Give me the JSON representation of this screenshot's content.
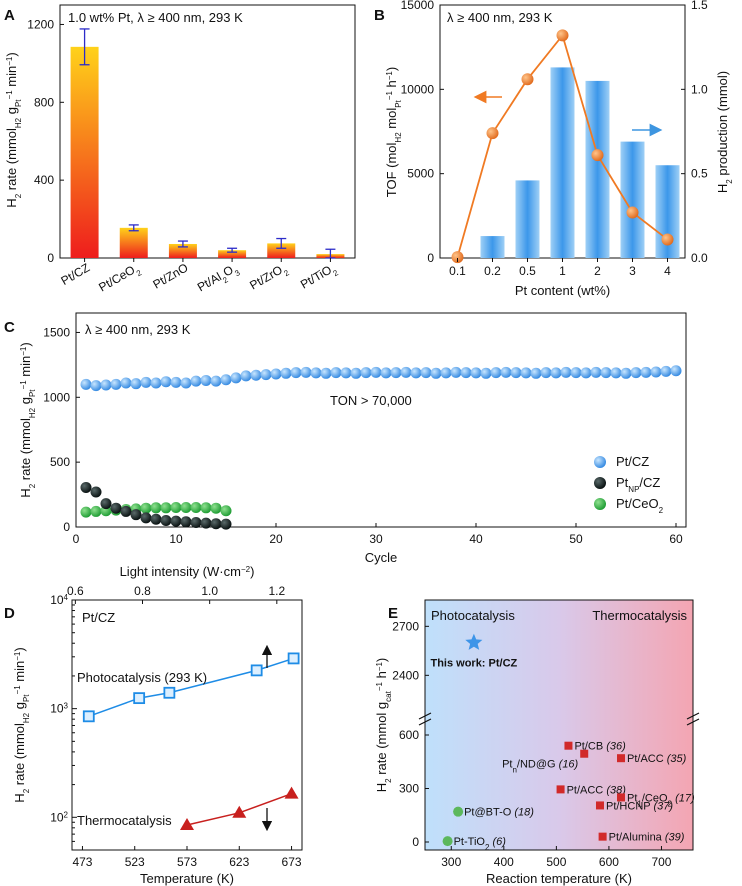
{
  "chart_data": [
    {
      "panel": "A",
      "type": "bar",
      "annotation": "1.0 wt% Pt, λ ≥ 400 nm, 293 K",
      "ylabel": "H2 rate (mmolH2 gPt−1 min−1)",
      "categories": [
        "Pt/CZ",
        "Pt/CeO2",
        "Pt/ZnO",
        "Pt/Al2O3",
        "Pt/ZrO2",
        "Pt/TiO2"
      ],
      "values": [
        1085,
        155,
        72,
        40,
        75,
        20
      ],
      "errors": [
        92,
        15,
        15,
        10,
        25,
        25
      ],
      "ylim": [
        0,
        1300
      ],
      "yticks": [
        0,
        400,
        800,
        1200
      ],
      "colors": {
        "bar_bottom": "#ee1d1d",
        "bar_top": "#ffd21a",
        "errorbar": "#2c2cc9"
      }
    },
    {
      "panel": "B",
      "type": "bar+line",
      "annotation": "λ ≥ 400 nm, 293 K",
      "xlabel": "Pt content (wt%)",
      "ylabel_left": "TOF (molH2 molPt−1 h−1)",
      "ylabel_right": "H2 production (mmol)",
      "categories": [
        "0.1",
        "0.2",
        "0.5",
        "1",
        "2",
        "3",
        "4"
      ],
      "series": [
        {
          "axis": "right",
          "style": "bar",
          "values": [
            null,
            0.13,
            0.46,
            1.13,
            1.05,
            0.69,
            0.55
          ]
        },
        {
          "axis": "left",
          "style": "line",
          "values": [
            50,
            7400,
            10600,
            13200,
            6100,
            2700,
            1100
          ]
        }
      ],
      "ylim_left": [
        0,
        15000
      ],
      "yticks_left": [
        0,
        5000,
        10000,
        15000
      ],
      "ylim_right": [
        0,
        1.5
      ],
      "yticks_right": [
        "0.0",
        "0.5",
        "1.0",
        "1.5"
      ],
      "colors": {
        "bar": "#4aa3ea",
        "line": "#f07a23",
        "arrow_left": "#f07a23",
        "arrow_right": "#3d95e0"
      }
    },
    {
      "panel": "C",
      "type": "scatter",
      "annotation": "λ ≥ 400 nm, 293 K",
      "note": "TON > 70,000",
      "xlabel": "Cycle",
      "ylabel": "H2 rate (mmolH2 gPt−1 min−1)",
      "xlim": [
        0,
        61
      ],
      "xticks": [
        0,
        10,
        20,
        30,
        40,
        50,
        60
      ],
      "ylim": [
        0,
        1650
      ],
      "yticks": [
        0,
        500,
        1000,
        1500
      ],
      "series": [
        {
          "name": "Pt/CZ",
          "color": "#3d95e8",
          "x": [
            1,
            2,
            3,
            4,
            5,
            6,
            7,
            8,
            9,
            10,
            11,
            12,
            13,
            14,
            15,
            16,
            17,
            18,
            19,
            20,
            21,
            22,
            23,
            24,
            25,
            26,
            27,
            28,
            29,
            30,
            31,
            32,
            33,
            34,
            35,
            36,
            37,
            38,
            39,
            40,
            41,
            42,
            43,
            44,
            45,
            46,
            47,
            48,
            49,
            50,
            51,
            52,
            53,
            54,
            55,
            56,
            57,
            58,
            59,
            60
          ],
          "y": [
            1100,
            1090,
            1095,
            1100,
            1110,
            1105,
            1115,
            1110,
            1120,
            1115,
            1110,
            1125,
            1130,
            1125,
            1135,
            1150,
            1165,
            1170,
            1175,
            1180,
            1185,
            1190,
            1192,
            1188,
            1185,
            1190,
            1188,
            1185,
            1190,
            1192,
            1188,
            1190,
            1192,
            1188,
            1190,
            1185,
            1188,
            1192,
            1190,
            1188,
            1185,
            1190,
            1192,
            1190,
            1188,
            1185,
            1190,
            1188,
            1192,
            1190,
            1188,
            1192,
            1190,
            1188,
            1185,
            1190,
            1192,
            1195,
            1200,
            1205
          ]
        },
        {
          "name": "PtNP/CZ",
          "color": "#0b1a1a",
          "x": [
            1,
            2,
            3,
            4,
            5,
            6,
            7,
            8,
            9,
            10,
            11,
            12,
            13,
            14,
            15
          ],
          "y": [
            305,
            270,
            180,
            145,
            120,
            95,
            70,
            60,
            50,
            45,
            40,
            35,
            30,
            25,
            22
          ]
        },
        {
          "name": "Pt/CeO2",
          "color": "#22a33a",
          "x": [
            1,
            2,
            3,
            4,
            5,
            6,
            7,
            8,
            9,
            10,
            11,
            12,
            13,
            14,
            15
          ],
          "y": [
            115,
            120,
            125,
            130,
            135,
            140,
            145,
            148,
            148,
            150,
            150,
            150,
            148,
            145,
            125
          ]
        }
      ]
    },
    {
      "panel": "D",
      "type": "line",
      "annotation": "Pt/CZ",
      "xlabel": "Temperature (K)",
      "xlabel_top": "Light intensity (W·cm−2)",
      "ylabel": "H2 rate (mmolH2 gPt−1 min−1)",
      "yscale": "log",
      "ylim": [
        50,
        10000
      ],
      "xlim": [
        463,
        683
      ],
      "xticks": [
        473,
        523,
        573,
        623,
        673
      ],
      "xticks_top": [
        "0.6",
        "0.8",
        "1.0",
        "1.2"
      ],
      "xlim_top": [
        0.59,
        1.275
      ],
      "series": [
        {
          "label": "Photocatalysis (293 K)",
          "axis": "top",
          "marker": "square",
          "color": "#1e8ce6",
          "x": [
            0.64,
            0.79,
            0.88,
            1.14,
            1.25
          ],
          "y": [
            850,
            1250,
            1400,
            2250,
            2900
          ]
        },
        {
          "label": "Thermocatalysis",
          "axis": "bottom",
          "marker": "triangle",
          "color": "#c8201e",
          "x": [
            573,
            623,
            673
          ],
          "y": [
            85,
            110,
            165
          ]
        }
      ]
    },
    {
      "panel": "E",
      "type": "scatter",
      "region_left": "Photocatalysis",
      "region_right": "Thermocatalysis",
      "xlabel": "Reaction temperature (K)",
      "ylabel": "H2 rate (mmol gcat−1 h−1)",
      "xlim": [
        250,
        760
      ],
      "xticks": [
        300,
        400,
        500,
        600,
        700
      ],
      "yticks_lower": [
        0,
        300,
        600
      ],
      "yticks_upper": [
        2400,
        2700
      ],
      "highlight": {
        "label": "This work: Pt/CZ",
        "x": 343,
        "y": 2600,
        "color": "#3d95e8"
      },
      "points": [
        {
          "label": "Pt/CB",
          "ref": "(36)",
          "x": 523,
          "y": 540,
          "group": "thermo"
        },
        {
          "label": "Ptn/ND@G",
          "ref": "(16)",
          "x": 553,
          "y": 495,
          "group": "thermo"
        },
        {
          "label": "Pt/ACC",
          "ref": "(35)",
          "x": 623,
          "y": 470,
          "group": "thermo"
        },
        {
          "label": "Pt/ACC",
          "ref": "(38)",
          "x": 508,
          "y": 295,
          "group": "thermo"
        },
        {
          "label": "Pt1/CeO2",
          "ref": "(17)",
          "x": 623,
          "y": 250,
          "group": "thermo"
        },
        {
          "label": "Pt/HCNP",
          "ref": "(37)",
          "x": 583,
          "y": 205,
          "group": "thermo"
        },
        {
          "label": "Pt/Alumina",
          "ref": "(39)",
          "x": 588,
          "y": 30,
          "group": "thermo"
        },
        {
          "label": "Pt@BT-O",
          "ref": "(18)",
          "x": 313,
          "y": 170,
          "group": "photo"
        },
        {
          "label": "Pt-TiO2",
          "ref": "(6)",
          "x": 293,
          "y": 5,
          "group": "photo"
        }
      ],
      "colors": {
        "thermo_marker": "#d12a2a",
        "photo_marker": "#5cb85c",
        "bg_left": "#bfe0fb",
        "bg_right": "#f4a5b2"
      }
    }
  ]
}
